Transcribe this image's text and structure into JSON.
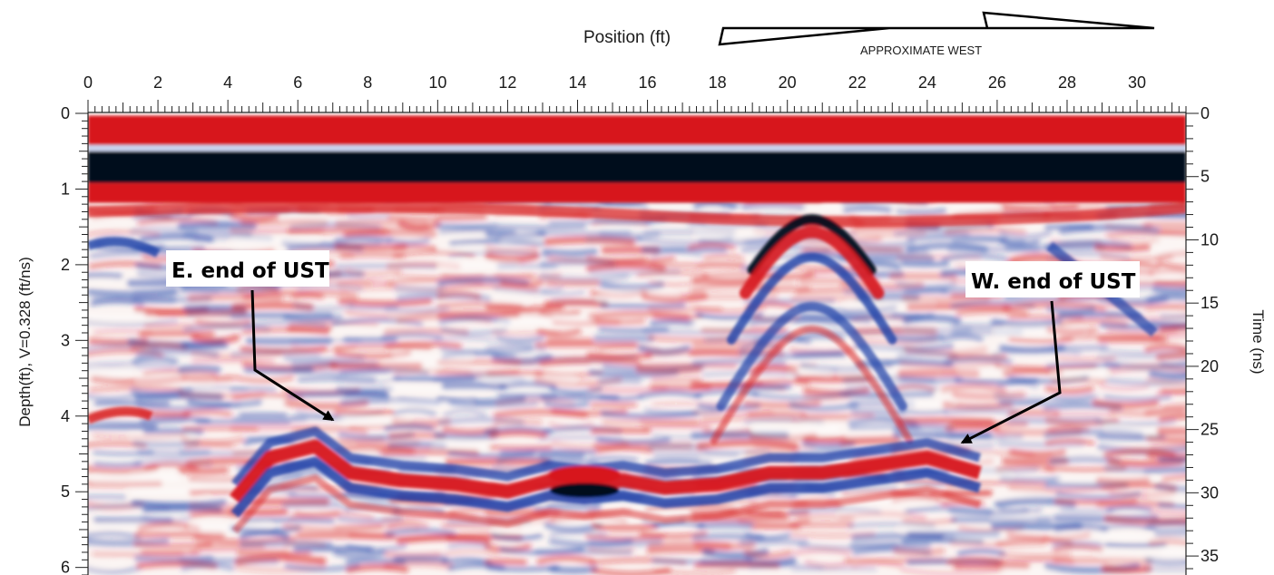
{
  "chart_data": {
    "type": "heatmap",
    "title": "",
    "header": {
      "position_label": "Position (ft)",
      "direction_label": "APPROXIMATE WEST"
    },
    "xlabel": "Position (ft)",
    "ylabel_left": "Depth(ft), V=0.328 (ft/ns)",
    "ylabel_right": "Time (ns)",
    "x_ticks": [
      "0",
      "2",
      "4",
      "6",
      "8",
      "10",
      "12",
      "14",
      "16",
      "18",
      "20",
      "22",
      "24",
      "26",
      "28",
      "30"
    ],
    "depth_ticks": [
      "0",
      "1",
      "2",
      "3",
      "4",
      "5",
      "6"
    ],
    "time_ticks": [
      "0",
      "5",
      "10",
      "15",
      "20",
      "25",
      "30",
      "35"
    ],
    "xlim": [
      0,
      31.4
    ],
    "depth_lim": [
      0,
      6.1
    ],
    "time_lim": [
      0,
      36.5
    ],
    "colormap": {
      "positive": "#d7191c",
      "neutral": "#ffffff",
      "negative": "#1c3fa8",
      "strong_negative": "#050a1e"
    },
    "annotations": [
      {
        "label": "E. end of UST",
        "target_position_ft": 7.0,
        "target_depth_ft": 4.05
      },
      {
        "label": "W. end of UST",
        "target_position_ft": 25.0,
        "target_depth_ft": 4.35
      }
    ],
    "reflectors": [
      {
        "kind": "ground surface",
        "depth_ft": 0.25,
        "polarity": "positive"
      },
      {
        "kind": "direct wave",
        "depth_ft": 0.7,
        "polarity": "negative"
      },
      {
        "kind": "hyperbola apex",
        "position_ft": 20.7,
        "depth_ft": 1.4
      },
      {
        "kind": "UST top reflector",
        "position_ft_range": [
          4.5,
          25.5
        ],
        "depth_ft_range": [
          4.3,
          5.0
        ]
      }
    ]
  }
}
